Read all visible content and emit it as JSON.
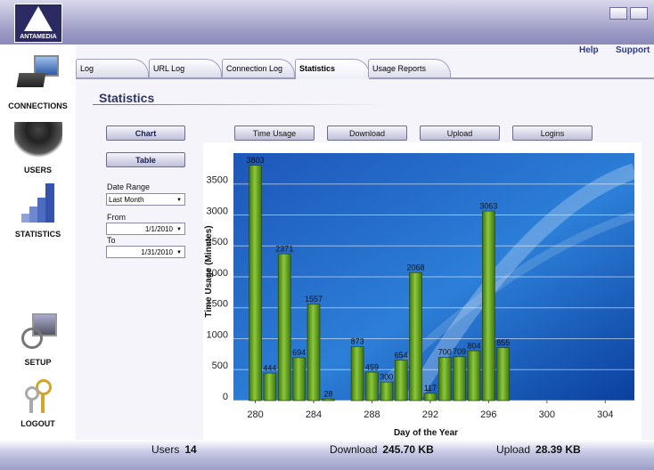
{
  "app": {
    "logo": "ANTAMEDIA",
    "links": [
      "Help",
      "Support"
    ]
  },
  "sidebar": [
    "CONNECTIONS",
    "USERS",
    "STATISTICS",
    "SETUP",
    "LOGOUT"
  ],
  "tabs": [
    "Log",
    "URL Log",
    "Connection Log",
    "Statistics",
    "Usage Reports"
  ],
  "heading": "Statistics",
  "view_buttons": [
    "Chart",
    "Table"
  ],
  "filters": {
    "range_label": "Date Range",
    "range": "Last Month",
    "from_label": "From",
    "from": "1/1/2010",
    "to_label": "To",
    "to": "1/31/2010"
  },
  "metric_buttons": [
    "Time Usage",
    "Download",
    "Upload",
    "Logins"
  ],
  "chart_data": {
    "type": "bar",
    "x_label": "Day of the Year",
    "y_label": "Time Usage (Minutes)",
    "x": [
      280,
      281,
      282,
      283,
      284,
      285,
      287,
      288,
      289,
      290,
      291,
      292,
      293,
      294,
      295,
      296,
      297
    ],
    "values": [
      3803,
      444,
      2371,
      694,
      1557,
      28,
      873,
      459,
      300,
      654,
      2068,
      117,
      700,
      709,
      804,
      3063,
      855
    ],
    "color": "#6fa823",
    "xlim": [
      278.5,
      306
    ],
    "xticks": [
      280,
      284,
      288,
      292,
      296,
      300,
      304
    ],
    "ylim": [
      0,
      4000
    ],
    "yticks": [
      0,
      500,
      1000,
      1500,
      2000,
      2500,
      3000,
      3500
    ],
    "grid": true
  },
  "footer": [
    {
      "label": "Users",
      "value": "14"
    },
    {
      "label": "Download",
      "value": "245.70 KB"
    },
    {
      "label": "Upload",
      "value": "28.39 KB"
    }
  ]
}
